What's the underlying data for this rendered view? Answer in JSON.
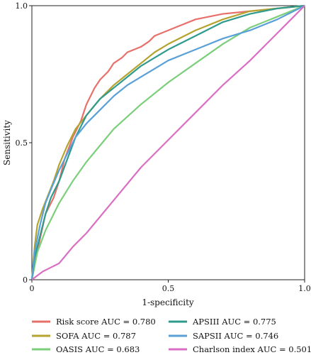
{
  "chart_data": {
    "type": "line",
    "title": "",
    "xlabel": "1-specificity",
    "ylabel": "Sensitivity",
    "xlim": [
      0,
      1
    ],
    "ylim": [
      0,
      1
    ],
    "x_ticks": [
      "0",
      "0.5",
      "1.0"
    ],
    "y_ticks": [
      "0",
      "0.5",
      "1.0"
    ],
    "grid": false,
    "legend_position": "bottom",
    "series": [
      {
        "name": "Risk score AUC = 0.780",
        "color": "#e8706a",
        "x": [
          0,
          0.01,
          0.03,
          0.05,
          0.08,
          0.1,
          0.12,
          0.15,
          0.18,
          0.2,
          0.23,
          0.25,
          0.28,
          0.3,
          0.33,
          0.35,
          0.4,
          0.43,
          0.45,
          0.5,
          0.55,
          0.6,
          0.7,
          0.8,
          0.9,
          1.0
        ],
        "y": [
          0,
          0.06,
          0.15,
          0.24,
          0.3,
          0.36,
          0.44,
          0.52,
          0.58,
          0.64,
          0.7,
          0.73,
          0.76,
          0.79,
          0.81,
          0.83,
          0.85,
          0.87,
          0.89,
          0.91,
          0.93,
          0.95,
          0.97,
          0.98,
          0.99,
          1.0
        ]
      },
      {
        "name": "SOFA AUC = 0.787",
        "color": "#b5a330",
        "x": [
          0,
          0.01,
          0.02,
          0.04,
          0.06,
          0.08,
          0.1,
          0.13,
          0.16,
          0.2,
          0.25,
          0.3,
          0.35,
          0.4,
          0.45,
          0.5,
          0.6,
          0.7,
          0.8,
          0.9,
          1.0
        ],
        "y": [
          0,
          0.12,
          0.2,
          0.26,
          0.31,
          0.36,
          0.42,
          0.49,
          0.55,
          0.6,
          0.66,
          0.71,
          0.75,
          0.79,
          0.83,
          0.86,
          0.91,
          0.95,
          0.98,
          0.99,
          1.0
        ]
      },
      {
        "name": "OASIS AUC = 0.683",
        "color": "#7ccf7a",
        "x": [
          0,
          0.02,
          0.05,
          0.08,
          0.1,
          0.15,
          0.2,
          0.25,
          0.3,
          0.4,
          0.5,
          0.6,
          0.7,
          0.8,
          0.9,
          1.0
        ],
        "y": [
          0,
          0.1,
          0.18,
          0.24,
          0.28,
          0.36,
          0.43,
          0.49,
          0.55,
          0.64,
          0.72,
          0.79,
          0.86,
          0.92,
          0.96,
          1.0
        ]
      },
      {
        "name": "APSIII AUC = 0.775",
        "color": "#2e9b8c",
        "x": [
          0,
          0.01,
          0.03,
          0.05,
          0.07,
          0.1,
          0.13,
          0.16,
          0.2,
          0.25,
          0.3,
          0.35,
          0.4,
          0.45,
          0.5,
          0.6,
          0.7,
          0.8,
          0.9,
          1.0
        ],
        "y": [
          0,
          0.08,
          0.16,
          0.24,
          0.3,
          0.36,
          0.44,
          0.52,
          0.6,
          0.66,
          0.7,
          0.74,
          0.78,
          0.81,
          0.84,
          0.89,
          0.94,
          0.97,
          0.99,
          1.0
        ]
      },
      {
        "name": "SAPSII AUC = 0.746",
        "color": "#5aa0d8",
        "x": [
          0,
          0.01,
          0.03,
          0.05,
          0.07,
          0.1,
          0.13,
          0.16,
          0.2,
          0.25,
          0.3,
          0.35,
          0.4,
          0.45,
          0.5,
          0.6,
          0.7,
          0.8,
          0.9,
          1.0
        ],
        "y": [
          0,
          0.1,
          0.2,
          0.28,
          0.33,
          0.4,
          0.46,
          0.52,
          0.57,
          0.62,
          0.67,
          0.71,
          0.74,
          0.77,
          0.8,
          0.84,
          0.88,
          0.91,
          0.95,
          1.0
        ]
      },
      {
        "name": "Charlson index AUC = 0.501",
        "color": "#d86fc4",
        "x": [
          0,
          0.04,
          0.06,
          0.1,
          0.15,
          0.2,
          0.3,
          0.4,
          0.5,
          0.6,
          0.7,
          0.8,
          0.85,
          0.9,
          0.95,
          1.0
        ],
        "y": [
          0,
          0.03,
          0.04,
          0.06,
          0.12,
          0.17,
          0.29,
          0.41,
          0.51,
          0.61,
          0.71,
          0.8,
          0.85,
          0.9,
          0.95,
          1.0
        ]
      }
    ]
  }
}
